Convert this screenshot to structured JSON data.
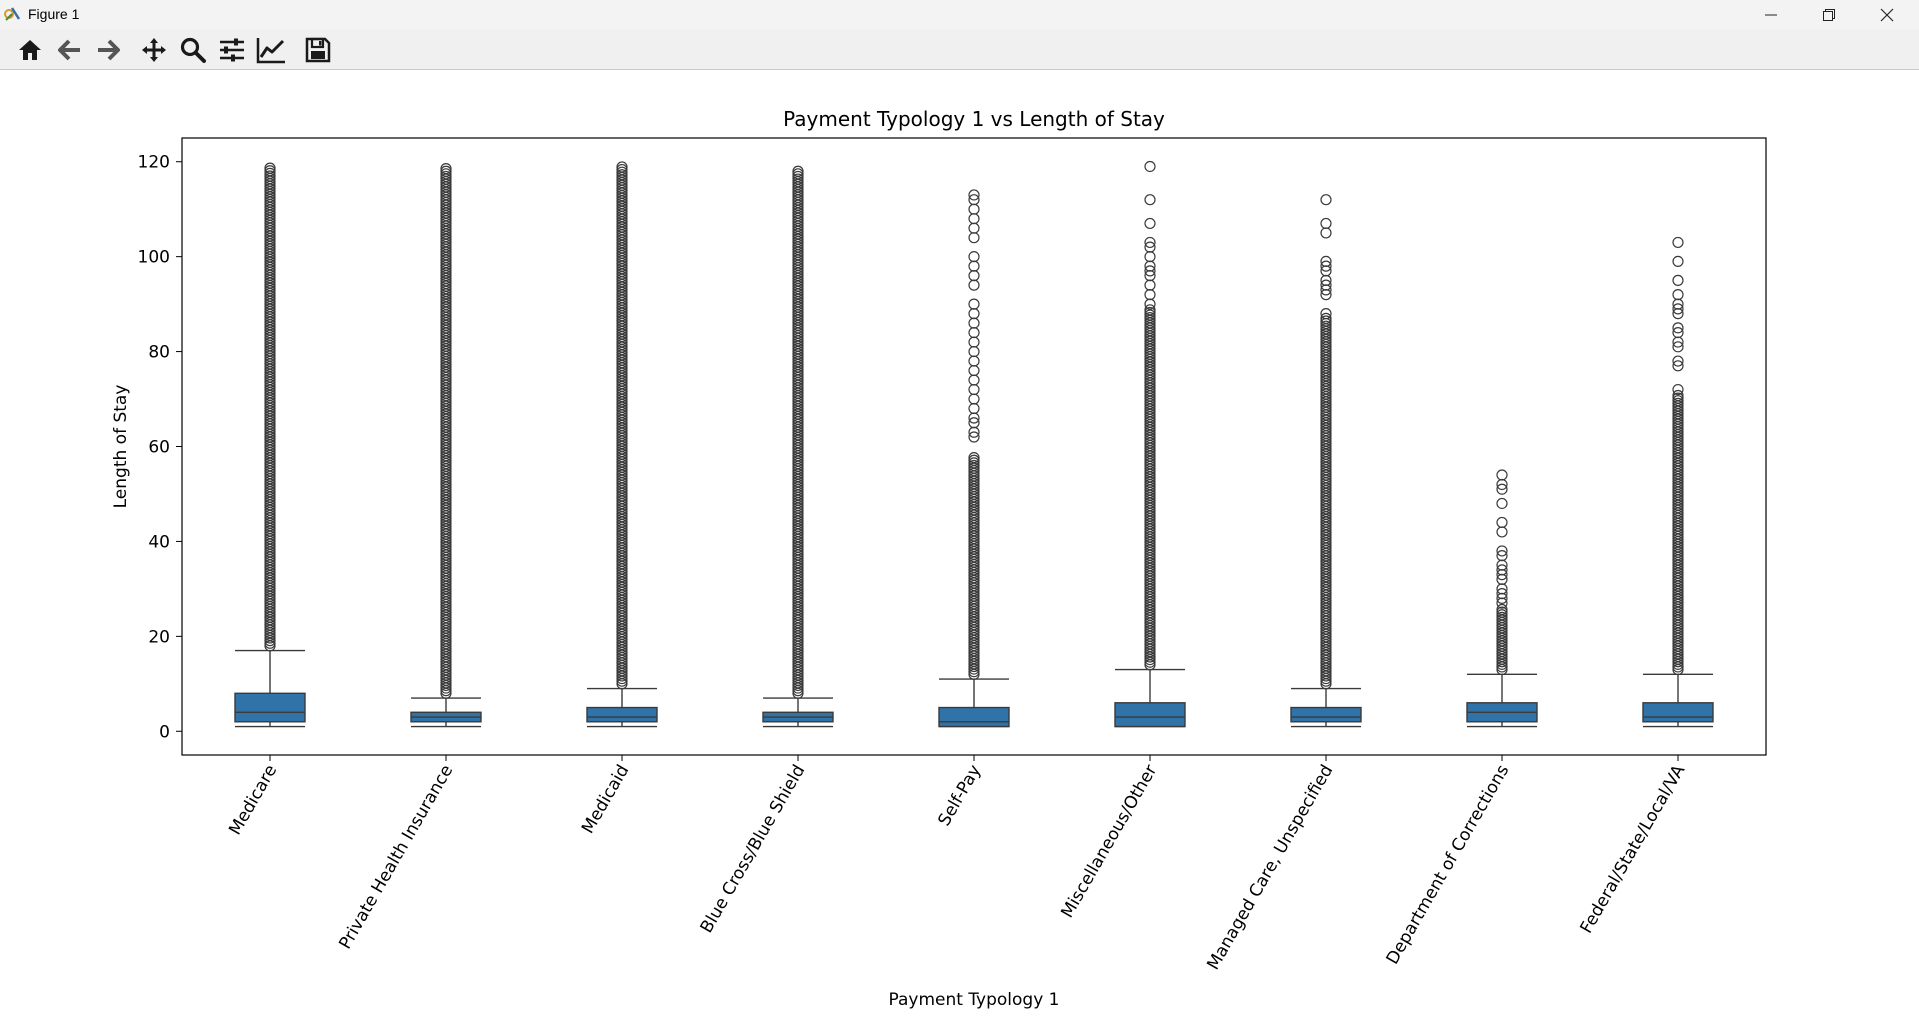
{
  "window": {
    "title": "Figure 1",
    "controls": [
      "minimize",
      "restore",
      "close"
    ]
  },
  "toolbar": {
    "buttons": [
      {
        "name": "home",
        "icon": "home-icon"
      },
      {
        "name": "back",
        "icon": "arrow-left-icon"
      },
      {
        "name": "forward",
        "icon": "arrow-right-icon"
      },
      {
        "name": "pan",
        "icon": "move-icon"
      },
      {
        "name": "zoom",
        "icon": "zoom-icon"
      },
      {
        "name": "configure-subplots",
        "icon": "sliders-icon"
      },
      {
        "name": "edit-axis",
        "icon": "line-chart-icon"
      },
      {
        "name": "save",
        "icon": "save-icon"
      }
    ]
  },
  "chart_data": {
    "type": "box",
    "title": "Payment Typology 1 vs Length of Stay",
    "xlabel": "Payment Typology 1",
    "ylabel": "Length of Stay",
    "ylim": [
      -5,
      125
    ],
    "yticks": [
      0,
      20,
      40,
      60,
      80,
      100,
      120
    ],
    "box_color": "#2f73a8",
    "categories": [
      "Medicare",
      "Private Health Insurance",
      "Medicaid",
      "Blue Cross/Blue Shield",
      "Self-Pay",
      "Miscellaneous/Other",
      "Managed Care, Unspecified",
      "Department of Corrections",
      "Federal/State/Local/VA"
    ],
    "boxes": [
      {
        "min": 1,
        "q1": 2,
        "median": 4,
        "q3": 8,
        "whisker_high": 17,
        "outliers_dense": [
          18,
          119
        ],
        "outliers": []
      },
      {
        "min": 1,
        "q1": 2,
        "median": 3,
        "q3": 4,
        "whisker_high": 7,
        "outliers_dense": [
          8,
          119
        ],
        "outliers": []
      },
      {
        "min": 1,
        "q1": 2,
        "median": 3,
        "q3": 5,
        "whisker_high": 9,
        "outliers_dense": [
          10,
          119
        ],
        "outliers": []
      },
      {
        "min": 1,
        "q1": 2,
        "median": 3,
        "q3": 4,
        "whisker_high": 7,
        "outliers_dense": [
          8,
          118
        ],
        "outliers": []
      },
      {
        "min": 1,
        "q1": 1,
        "median": 2,
        "q3": 5,
        "whisker_high": 11,
        "outliers_dense": [
          12,
          58
        ],
        "outliers": [
          62,
          63,
          65,
          66,
          68,
          70,
          72,
          74,
          76,
          78,
          80,
          82,
          84,
          86,
          88,
          90,
          94,
          96,
          98,
          100,
          104,
          106,
          108,
          110,
          112,
          113
        ]
      },
      {
        "min": 1,
        "q1": 1,
        "median": 3,
        "q3": 6,
        "whisker_high": 13,
        "outliers_dense": [
          14,
          89
        ],
        "outliers": [
          90,
          92,
          94,
          96,
          97,
          98,
          100,
          102,
          103,
          107,
          112,
          119
        ]
      },
      {
        "min": 1,
        "q1": 2,
        "median": 3,
        "q3": 5,
        "whisker_high": 9,
        "outliers_dense": [
          10,
          87
        ],
        "outliers": [
          88,
          92,
          93,
          94,
          95,
          97,
          98,
          99,
          105,
          107,
          112
        ]
      },
      {
        "min": 1,
        "q1": 2,
        "median": 4,
        "q3": 6,
        "whisker_high": 12,
        "outliers_dense": [
          13,
          26
        ],
        "outliers": [
          27,
          28,
          29,
          30,
          32,
          33,
          34,
          35,
          37,
          38,
          42,
          44,
          48,
          51,
          52,
          54
        ]
      },
      {
        "min": 1,
        "q1": 2,
        "median": 3,
        "q3": 6,
        "whisker_high": 12,
        "outliers_dense": [
          13,
          71
        ],
        "outliers": [
          72,
          77,
          78,
          81,
          82,
          84,
          85,
          88,
          89,
          90,
          92,
          95,
          99,
          103
        ]
      }
    ]
  }
}
